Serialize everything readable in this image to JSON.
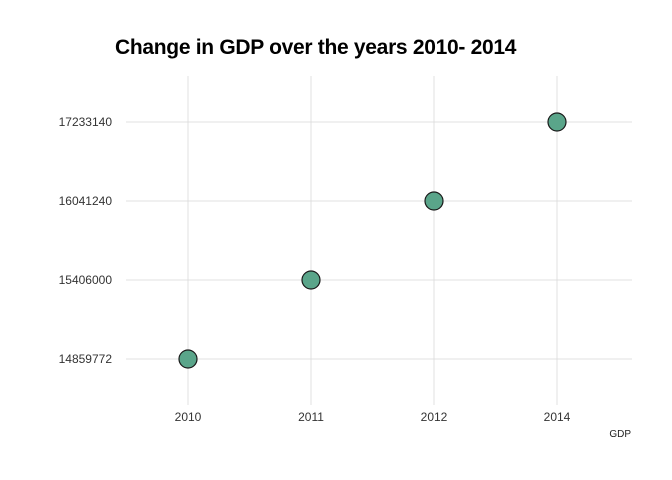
{
  "chart_data": {
    "type": "scatter",
    "title": "Change in GDP over the years 2010- 2014",
    "caption": "GDP",
    "xlabel": "",
    "ylabel": "",
    "x_categories": [
      "2010",
      "2011",
      "2012",
      "2014"
    ],
    "y_categories": [
      "14859772",
      "15406000",
      "16041240",
      "17233140"
    ],
    "points": [
      {
        "x": "2010",
        "y": "14859772"
      },
      {
        "x": "2011",
        "y": "15406000"
      },
      {
        "x": "2012",
        "y": "16041240"
      },
      {
        "x": "2014",
        "y": "17233140"
      }
    ],
    "grid": true,
    "legend": "none",
    "colors": {
      "point_fill": "#5aa58a",
      "point_stroke": "#1a1a1a",
      "grid": "#d9d9d9",
      "tick_text": "#333333"
    }
  }
}
